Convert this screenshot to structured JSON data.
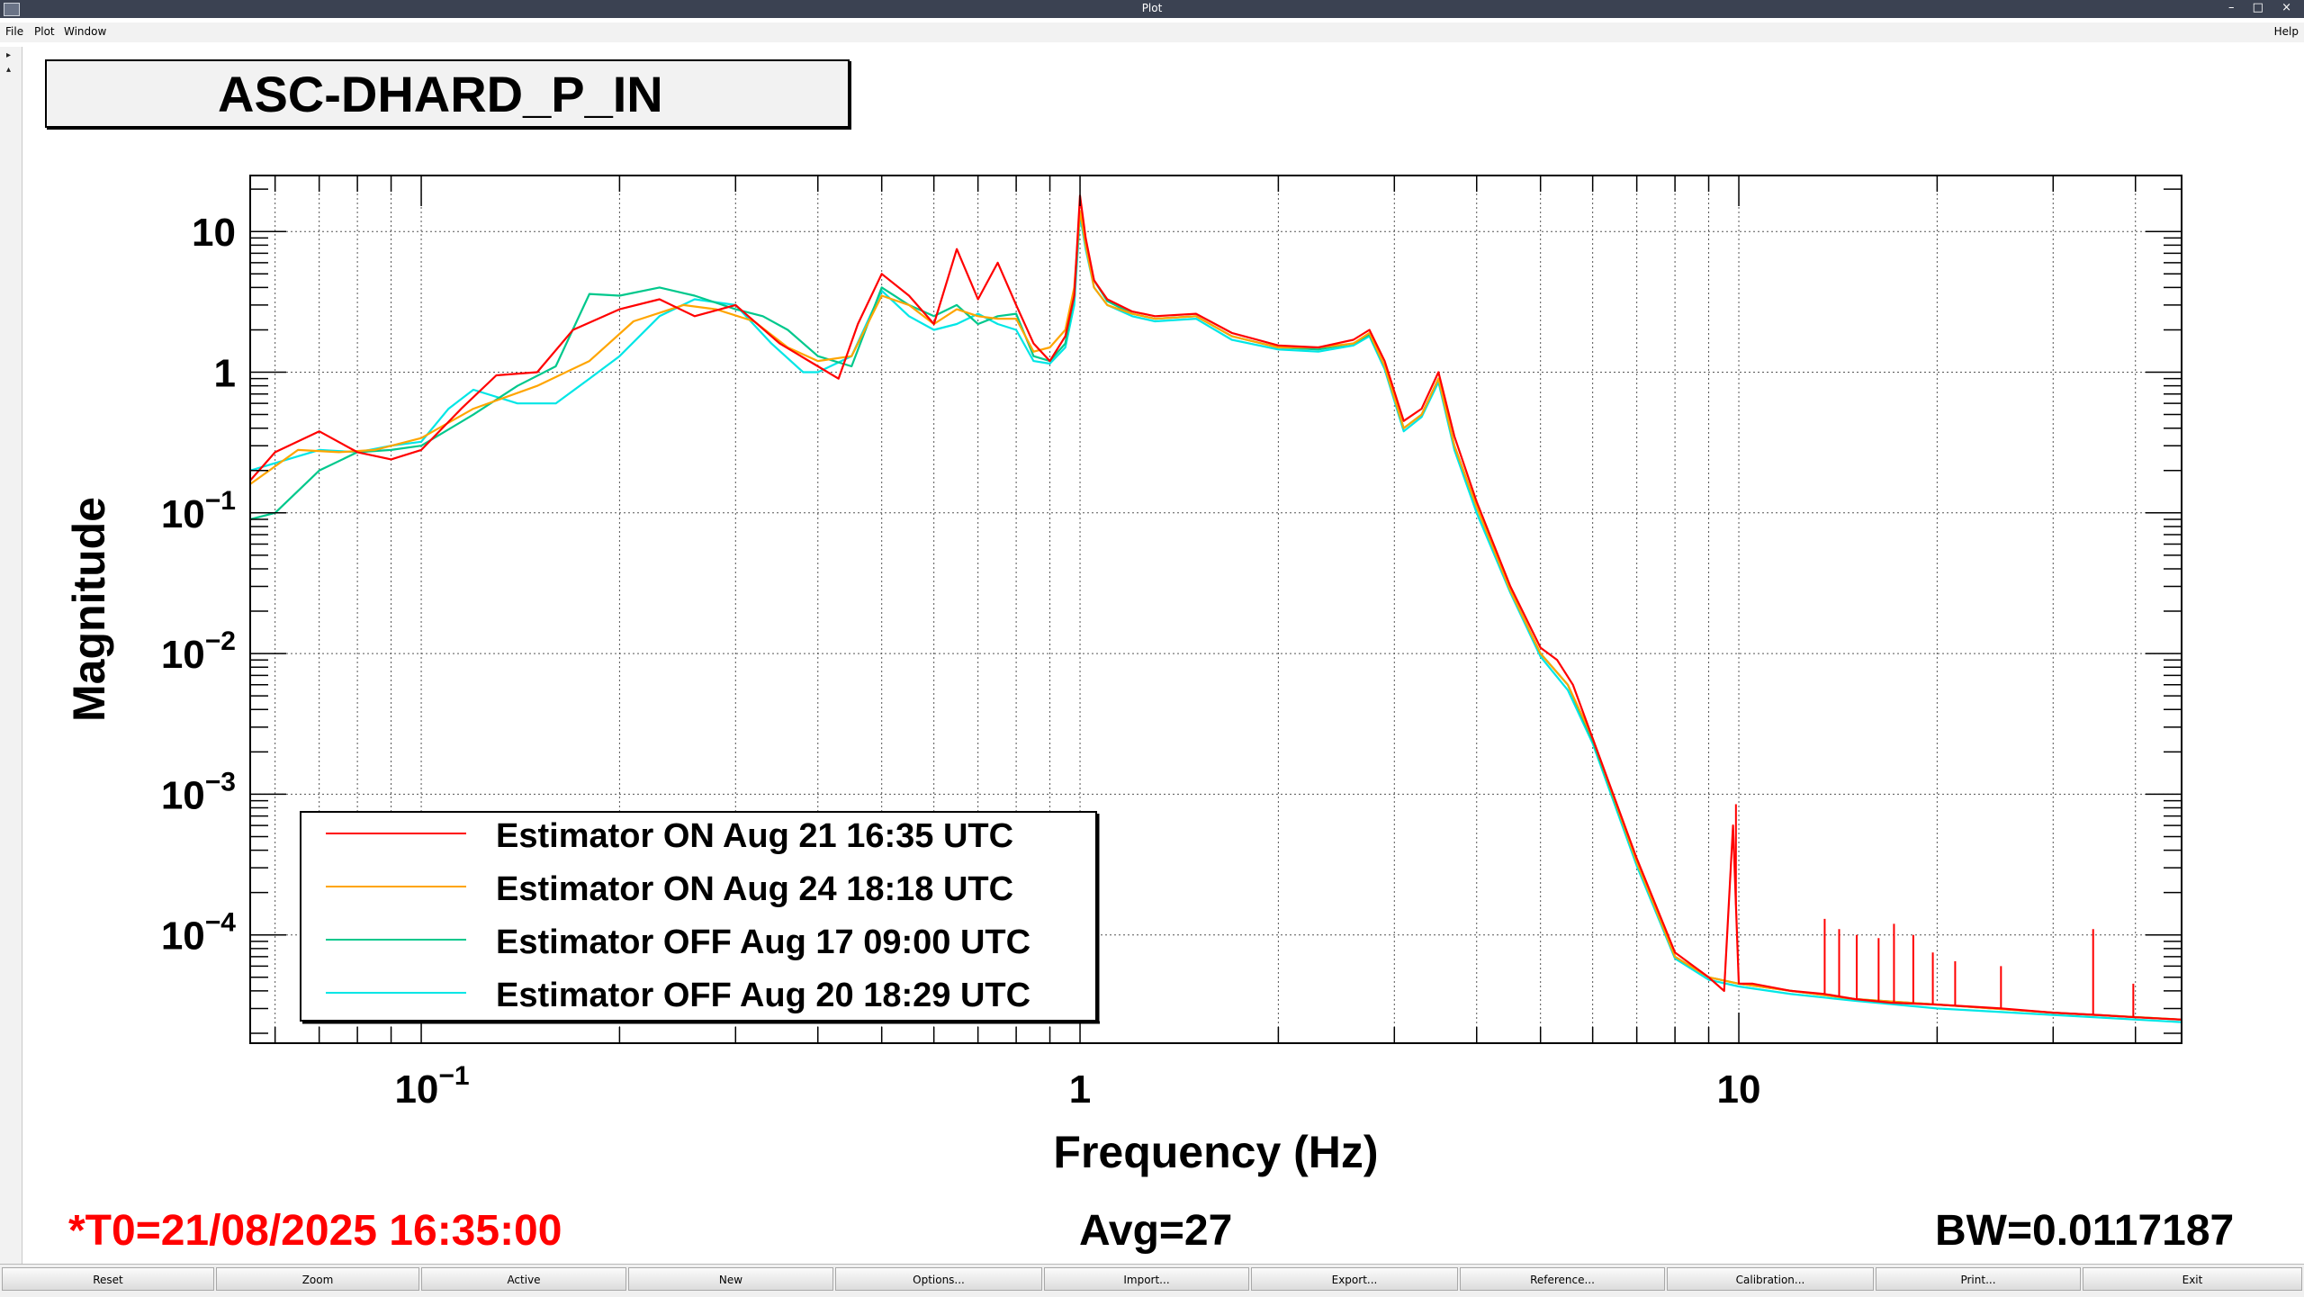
{
  "window": {
    "title": "Plot",
    "controls": "– □ ×"
  },
  "menu": {
    "file": "File",
    "plot": "Plot",
    "window": "Window",
    "help": "Help"
  },
  "plot_title": "ASC-DHARD_P_IN",
  "chart_data": {
    "type": "line",
    "title": "ASC-DHARD_P_IN",
    "xlabel": "Frequency (Hz)",
    "ylabel": "Magnitude",
    "xscale": "log",
    "yscale": "log",
    "xlim": [
      0.055,
      47
    ],
    "ylim": [
      1.7e-05,
      25
    ],
    "x_ticks": [
      {
        "value": 0.1,
        "base": "10",
        "exp": "−1"
      },
      {
        "value": 1,
        "base": "1",
        "exp": ""
      },
      {
        "value": 10,
        "base": "10",
        "exp": ""
      }
    ],
    "y_ticks": [
      {
        "value": 10,
        "base": "10",
        "exp": ""
      },
      {
        "value": 1,
        "base": "1",
        "exp": ""
      },
      {
        "value": 0.1,
        "base": "10",
        "exp": "−1"
      },
      {
        "value": 0.01,
        "base": "10",
        "exp": "−2"
      },
      {
        "value": 0.001,
        "base": "10",
        "exp": "−3"
      },
      {
        "value": 0.0001,
        "base": "10",
        "exp": "−4"
      }
    ],
    "grid": true,
    "legend_position": "bottom-left",
    "series": [
      {
        "name": "Estimator ON Aug 21 16:35 UTC",
        "color": "#ff0000",
        "x": [
          0.055,
          0.06,
          0.07,
          0.08,
          0.09,
          0.1,
          0.115,
          0.13,
          0.15,
          0.17,
          0.2,
          0.23,
          0.26,
          0.3,
          0.35,
          0.4,
          0.43,
          0.46,
          0.5,
          0.55,
          0.6,
          0.65,
          0.7,
          0.75,
          0.8,
          0.85,
          0.9,
          0.95,
          0.98,
          1.0,
          1.02,
          1.05,
          1.1,
          1.2,
          1.3,
          1.5,
          1.7,
          2.0,
          2.3,
          2.6,
          2.75,
          2.9,
          3.1,
          3.3,
          3.5,
          3.7,
          4.0,
          4.5,
          5.0,
          5.3,
          5.6,
          6.0,
          7.0,
          8.0,
          9.0,
          9.5,
          9.8,
          10.0,
          10.5,
          12,
          13.5,
          15,
          17,
          20,
          25,
          30,
          35,
          40,
          47
        ],
        "y": [
          0.17,
          0.27,
          0.38,
          0.27,
          0.24,
          0.28,
          0.55,
          0.95,
          1.0,
          2.0,
          2.8,
          3.3,
          2.5,
          3.0,
          1.6,
          1.1,
          0.9,
          2.2,
          5.0,
          3.5,
          2.2,
          7.5,
          3.3,
          6.0,
          3.0,
          1.6,
          1.2,
          1.8,
          3.5,
          18,
          9.0,
          4.5,
          3.3,
          2.7,
          2.5,
          2.6,
          1.9,
          1.55,
          1.5,
          1.7,
          2.0,
          1.2,
          0.45,
          0.55,
          1.0,
          0.35,
          0.12,
          0.03,
          0.011,
          0.009,
          0.006,
          0.0025,
          0.00035,
          7.5e-05,
          5e-05,
          4e-05,
          0.0006,
          4.5e-05,
          4.5e-05,
          4e-05,
          3.8e-05,
          3.5e-05,
          3.3e-05,
          3.2e-05,
          3e-05,
          2.8e-05,
          2.7e-05,
          2.6e-05,
          2.5e-05
        ]
      },
      {
        "name": "Estimator ON Aug 24 18:18 UTC",
        "color": "#ffa500",
        "x": [
          0.055,
          0.065,
          0.075,
          0.085,
          0.1,
          0.12,
          0.15,
          0.18,
          0.21,
          0.25,
          0.28,
          0.32,
          0.36,
          0.4,
          0.45,
          0.5,
          0.55,
          0.6,
          0.65,
          0.7,
          0.75,
          0.8,
          0.85,
          0.9,
          0.95,
          0.98,
          1.0,
          1.02,
          1.05,
          1.1,
          1.2,
          1.3,
          1.5,
          1.7,
          2.0,
          2.3,
          2.6,
          2.75,
          2.9,
          3.1,
          3.3,
          3.5,
          3.7,
          4.0,
          4.5,
          5.0,
          5.5,
          6.0,
          7.0,
          8.0,
          9.0,
          10.0,
          12,
          15,
          20,
          30,
          47
        ],
        "y": [
          0.16,
          0.28,
          0.27,
          0.28,
          0.34,
          0.55,
          0.8,
          1.2,
          2.3,
          3.0,
          2.8,
          2.3,
          1.5,
          1.2,
          1.3,
          3.5,
          3.0,
          2.2,
          2.8,
          2.5,
          2.4,
          2.4,
          1.4,
          1.5,
          2.0,
          4.0,
          14,
          8.0,
          4.0,
          3.0,
          2.6,
          2.4,
          2.5,
          1.8,
          1.5,
          1.5,
          1.6,
          1.9,
          1.1,
          0.4,
          0.5,
          0.9,
          0.3,
          0.11,
          0.028,
          0.01,
          0.006,
          0.0025,
          0.00033,
          7e-05,
          5e-05,
          4.5e-05,
          4e-05,
          3.5e-05,
          3.2e-05,
          2.8e-05,
          2.5e-05
        ]
      },
      {
        "name": "Estimator OFF Aug 17 09:00 UTC",
        "color": "#00c88c",
        "x": [
          0.055,
          0.06,
          0.07,
          0.08,
          0.09,
          0.1,
          0.12,
          0.14,
          0.16,
          0.18,
          0.2,
          0.23,
          0.26,
          0.3,
          0.33,
          0.36,
          0.4,
          0.45,
          0.5,
          0.55,
          0.6,
          0.65,
          0.7,
          0.75,
          0.8,
          0.85,
          0.9,
          0.95,
          0.98,
          1.0,
          1.02,
          1.05,
          1.1,
          1.2,
          1.3,
          1.5,
          1.7,
          2.0,
          2.3,
          2.6,
          2.75,
          2.9,
          3.1,
          3.3,
          3.5,
          3.7,
          4.0,
          4.5,
          5.0,
          5.5,
          6.0,
          7.0,
          8.0,
          9.0,
          10.0,
          12,
          15,
          20,
          30,
          47
        ],
        "y": [
          0.09,
          0.1,
          0.2,
          0.27,
          0.28,
          0.3,
          0.5,
          0.8,
          1.1,
          3.6,
          3.5,
          4.0,
          3.5,
          2.8,
          2.5,
          2.0,
          1.3,
          1.1,
          4.0,
          3.0,
          2.5,
          3.0,
          2.2,
          2.5,
          2.6,
          1.3,
          1.2,
          1.6,
          3.5,
          14,
          8.0,
          4.5,
          3.2,
          2.6,
          2.4,
          2.5,
          1.8,
          1.5,
          1.45,
          1.6,
          1.85,
          1.1,
          0.4,
          0.5,
          0.9,
          0.3,
          0.11,
          0.028,
          0.01,
          0.006,
          0.0024,
          0.00033,
          7e-05,
          5e-05,
          4.5e-05,
          4e-05,
          3.5e-05,
          3.2e-05,
          2.8e-05,
          2.5e-05
        ]
      },
      {
        "name": "Estimator OFF Aug 20 18:29 UTC",
        "color": "#00e6e6",
        "x": [
          0.055,
          0.07,
          0.08,
          0.09,
          0.1,
          0.11,
          0.12,
          0.14,
          0.16,
          0.18,
          0.2,
          0.23,
          0.26,
          0.3,
          0.34,
          0.38,
          0.4,
          0.45,
          0.5,
          0.55,
          0.6,
          0.65,
          0.7,
          0.75,
          0.8,
          0.85,
          0.9,
          0.95,
          0.98,
          1.0,
          1.02,
          1.05,
          1.1,
          1.2,
          1.3,
          1.5,
          1.7,
          2.0,
          2.3,
          2.6,
          2.75,
          2.9,
          3.1,
          3.3,
          3.5,
          3.7,
          4.0,
          4.5,
          5.0,
          5.5,
          6.0,
          7.0,
          8.0,
          9.0,
          10.0,
          12,
          15,
          20,
          30,
          47
        ],
        "y": [
          0.2,
          0.28,
          0.27,
          0.3,
          0.32,
          0.55,
          0.75,
          0.6,
          0.6,
          0.9,
          1.3,
          2.5,
          3.3,
          3.0,
          1.6,
          1.0,
          1.0,
          1.3,
          3.8,
          2.5,
          2.0,
          2.2,
          2.6,
          2.2,
          2.0,
          1.2,
          1.15,
          1.5,
          3.0,
          13,
          7.5,
          4.0,
          3.0,
          2.5,
          2.3,
          2.4,
          1.7,
          1.45,
          1.4,
          1.55,
          1.8,
          1.05,
          0.38,
          0.48,
          0.85,
          0.28,
          0.1,
          0.027,
          0.0095,
          0.0055,
          0.0023,
          0.00031,
          6.8e-05,
          4.8e-05,
          4.3e-05,
          3.8e-05,
          3.4e-05,
          3e-05,
          2.7e-05,
          2.4e-05
        ]
      }
    ],
    "line_peaks": [
      {
        "freq": 9.9,
        "mag": 0.00085
      },
      {
        "freq": 13.5,
        "mag": 0.00013
      },
      {
        "freq": 14.2,
        "mag": 0.00011
      },
      {
        "freq": 15.1,
        "mag": 0.0001
      },
      {
        "freq": 16.3,
        "mag": 9.5e-05
      },
      {
        "freq": 17.2,
        "mag": 0.00012
      },
      {
        "freq": 18.4,
        "mag": 0.0001
      },
      {
        "freq": 19.7,
        "mag": 7.5e-05
      },
      {
        "freq": 21.3,
        "mag": 6.5e-05
      },
      {
        "freq": 25.0,
        "mag": 6e-05
      },
      {
        "freq": 34.5,
        "mag": 0.00011
      },
      {
        "freq": 39.7,
        "mag": 4.5e-05
      }
    ]
  },
  "footer": {
    "t0": "*T0=21/08/2025 16:35:00",
    "avg": "Avg=27",
    "bw": "BW=0.0117187",
    "t0_color": "#ff0000"
  },
  "buttons": [
    "Reset",
    "Zoom",
    "Active",
    "New",
    "Options...",
    "Import...",
    "Export...",
    "Reference...",
    "Calibration...",
    "Print...",
    "Exit"
  ]
}
